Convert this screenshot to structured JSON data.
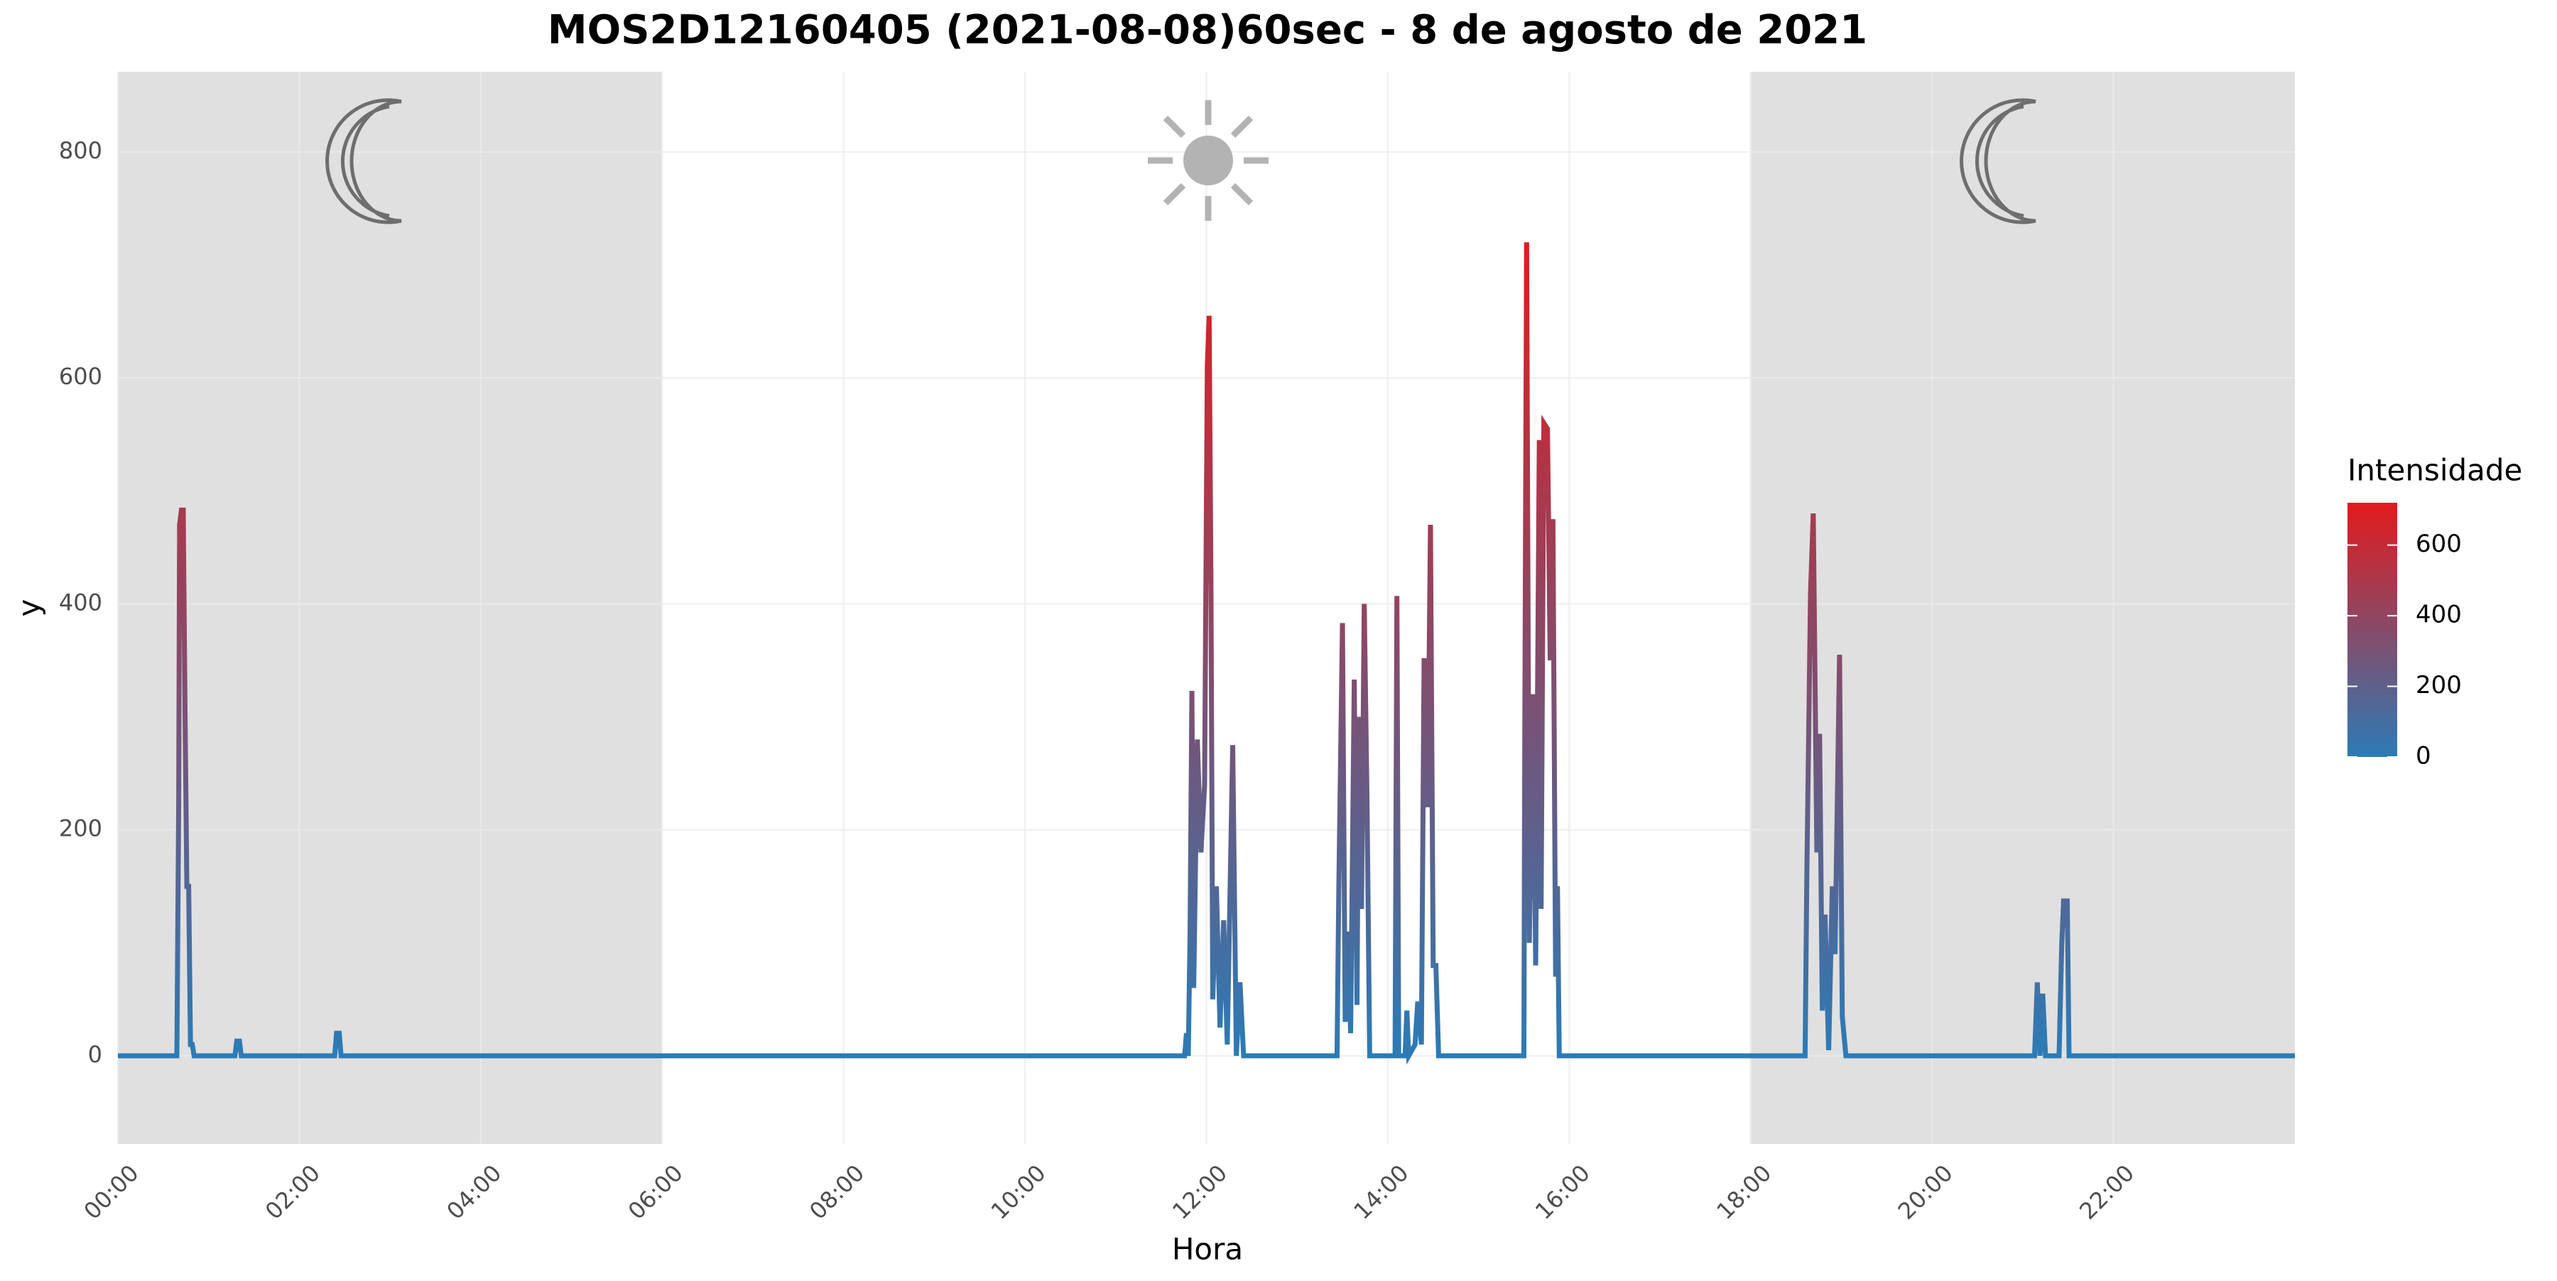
{
  "chart_data": {
    "type": "line",
    "title": "MOS2D12160405 (2021-08-08)60sec - 8 de agosto de 2021",
    "x_label": "Hora",
    "y_label": "y",
    "xlim": [
      0,
      24
    ],
    "ylim": [
      -78,
      871
    ],
    "xticks": [
      {
        "value": 0,
        "label": "00:00"
      },
      {
        "value": 2,
        "label": "02:00"
      },
      {
        "value": 4,
        "label": "04:00"
      },
      {
        "value": 6,
        "label": "06:00"
      },
      {
        "value": 8,
        "label": "08:00"
      },
      {
        "value": 10,
        "label": "10:00"
      },
      {
        "value": 12,
        "label": "12:00"
      },
      {
        "value": 14,
        "label": "14:00"
      },
      {
        "value": 16,
        "label": "16:00"
      },
      {
        "value": 18,
        "label": "18:00"
      },
      {
        "value": 20,
        "label": "20:00"
      },
      {
        "value": 22,
        "label": "22:00"
      }
    ],
    "yticks": [
      0,
      200,
      400,
      600,
      800
    ],
    "grid": true,
    "night_periods": [
      {
        "start": 0,
        "end": 6
      },
      {
        "start": 18,
        "end": 24
      }
    ],
    "night_color": "#e0e0e0",
    "color_scale": {
      "title": "Intensidade",
      "low": "#2c7bb6",
      "high": "#e31a1c",
      "limits": [
        0,
        720
      ],
      "ticks": [
        0,
        200,
        400,
        600
      ]
    },
    "x": [
      0,
      0.65,
      0.67,
      0.68,
      0.7,
      0.72,
      0.74,
      0.76,
      0.78,
      0.8,
      0.82,
      0.84,
      1.29,
      1.31,
      1.34,
      1.36,
      2.39,
      2.41,
      2.44,
      2.46,
      11.76,
      11.78,
      11.8,
      11.82,
      11.84,
      11.86,
      11.9,
      11.94,
      11.98,
      12.01,
      12.03,
      12.05,
      12.07,
      12.11,
      12.15,
      12.19,
      12.23,
      12.29,
      12.33,
      12.37,
      12.41,
      13.44,
      13.46,
      13.5,
      13.53,
      13.56,
      13.59,
      13.63,
      13.66,
      13.68,
      13.71,
      13.74,
      13.77,
      13.8,
      14.08,
      14.1,
      14.12,
      14.19,
      14.21,
      14.23,
      14.3,
      14.33,
      14.37,
      14.4,
      14.44,
      14.47,
      14.5,
      14.53,
      14.56,
      15.5,
      15.51,
      15.53,
      15.56,
      15.6,
      15.63,
      15.67,
      15.69,
      15.72,
      15.76,
      15.79,
      15.82,
      15.85,
      15.87,
      15.89,
      18.6,
      18.62,
      18.66,
      18.69,
      18.73,
      18.76,
      18.79,
      18.82,
      18.86,
      18.9,
      18.93,
      18.98,
      19.01,
      19.05,
      21.13,
      21.16,
      21.19,
      21.22,
      21.25,
      21.4,
      21.43,
      21.45,
      21.49,
      21.51,
      24
    ],
    "values": [
      0,
      0,
      220,
      470,
      483,
      483,
      305,
      150,
      150,
      10,
      10,
      0,
      0,
      13,
      13,
      0,
      0,
      20,
      20,
      0,
      0,
      20,
      0,
      110,
      323,
      60,
      280,
      180,
      240,
      610,
      655,
      420,
      50,
      150,
      25,
      120,
      10,
      275,
      0,
      65,
      0,
      0,
      150,
      383,
      30,
      110,
      20,
      333,
      45,
      300,
      130,
      400,
      230,
      0,
      0,
      407,
      0,
      0,
      40,
      0,
      10,
      48,
      10,
      352,
      220,
      470,
      80,
      80,
      0,
      0,
      290,
      720,
      100,
      320,
      80,
      545,
      130,
      560,
      555,
      350,
      475,
      70,
      150,
      0,
      0,
      165,
      410,
      480,
      180,
      285,
      40,
      125,
      5,
      150,
      90,
      355,
      35,
      0,
      0,
      65,
      0,
      55,
      0,
      0,
      100,
      137,
      137,
      0,
      0
    ]
  }
}
